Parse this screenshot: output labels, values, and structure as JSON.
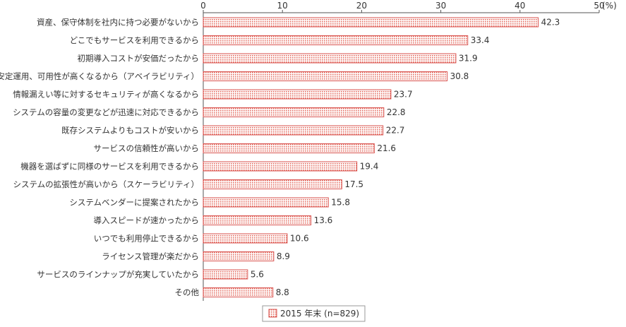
{
  "chart_data": {
    "type": "bar",
    "orientation": "horizontal",
    "categories": [
      "資産、保守体制を社内に持つ必要がないから",
      "どこでもサービスを利用できるから",
      "初期導入コストが安価だったから",
      "安定運用、可用性が高くなるから（アベイラビリティ）",
      "情報漏えい等に対するセキュリティが高くなるから",
      "システムの容量の変更などが迅速に対応できるから",
      "既存システムよりもコストが安いから",
      "サービスの信頼性が高いから",
      "機器を選ばずに同様のサービスを利用できるから",
      "システムの拡張性が高いから（スケーラビリティ）",
      "システムベンダーに提案されたから",
      "導入スピードが速かったから",
      "いつでも利用停止できるから",
      "ライセンス管理が楽だから",
      "サービスのラインナップが充実していたから",
      "その他"
    ],
    "series": [
      {
        "name": "2015 年末 (n=829)",
        "values": [
          42.3,
          33.4,
          31.9,
          30.8,
          23.7,
          22.8,
          22.7,
          21.6,
          19.4,
          17.5,
          15.8,
          13.6,
          10.6,
          8.9,
          5.6,
          8.8
        ],
        "value_labels": [
          "42.3",
          "33.4",
          "31.9",
          "30.8",
          "23.7",
          "22.8",
          "22.7",
          "21.6",
          "19.4",
          "17.5",
          "15.8",
          "13.6",
          "10.6",
          "8.9",
          "5.6",
          "8.8"
        ]
      }
    ],
    "xlim": [
      0,
      50
    ],
    "xticks": [
      "0",
      "10",
      "20",
      "30",
      "40",
      "50"
    ],
    "unit": "(%)",
    "title": "",
    "xlabel": "",
    "ylabel": "",
    "legend_position": "bottom",
    "grid": false,
    "colors": {
      "bar_border": "#d9534f",
      "bar_dot": "#e46b5f",
      "bar_fill": "#ffffff",
      "axis": "#555555"
    }
  }
}
